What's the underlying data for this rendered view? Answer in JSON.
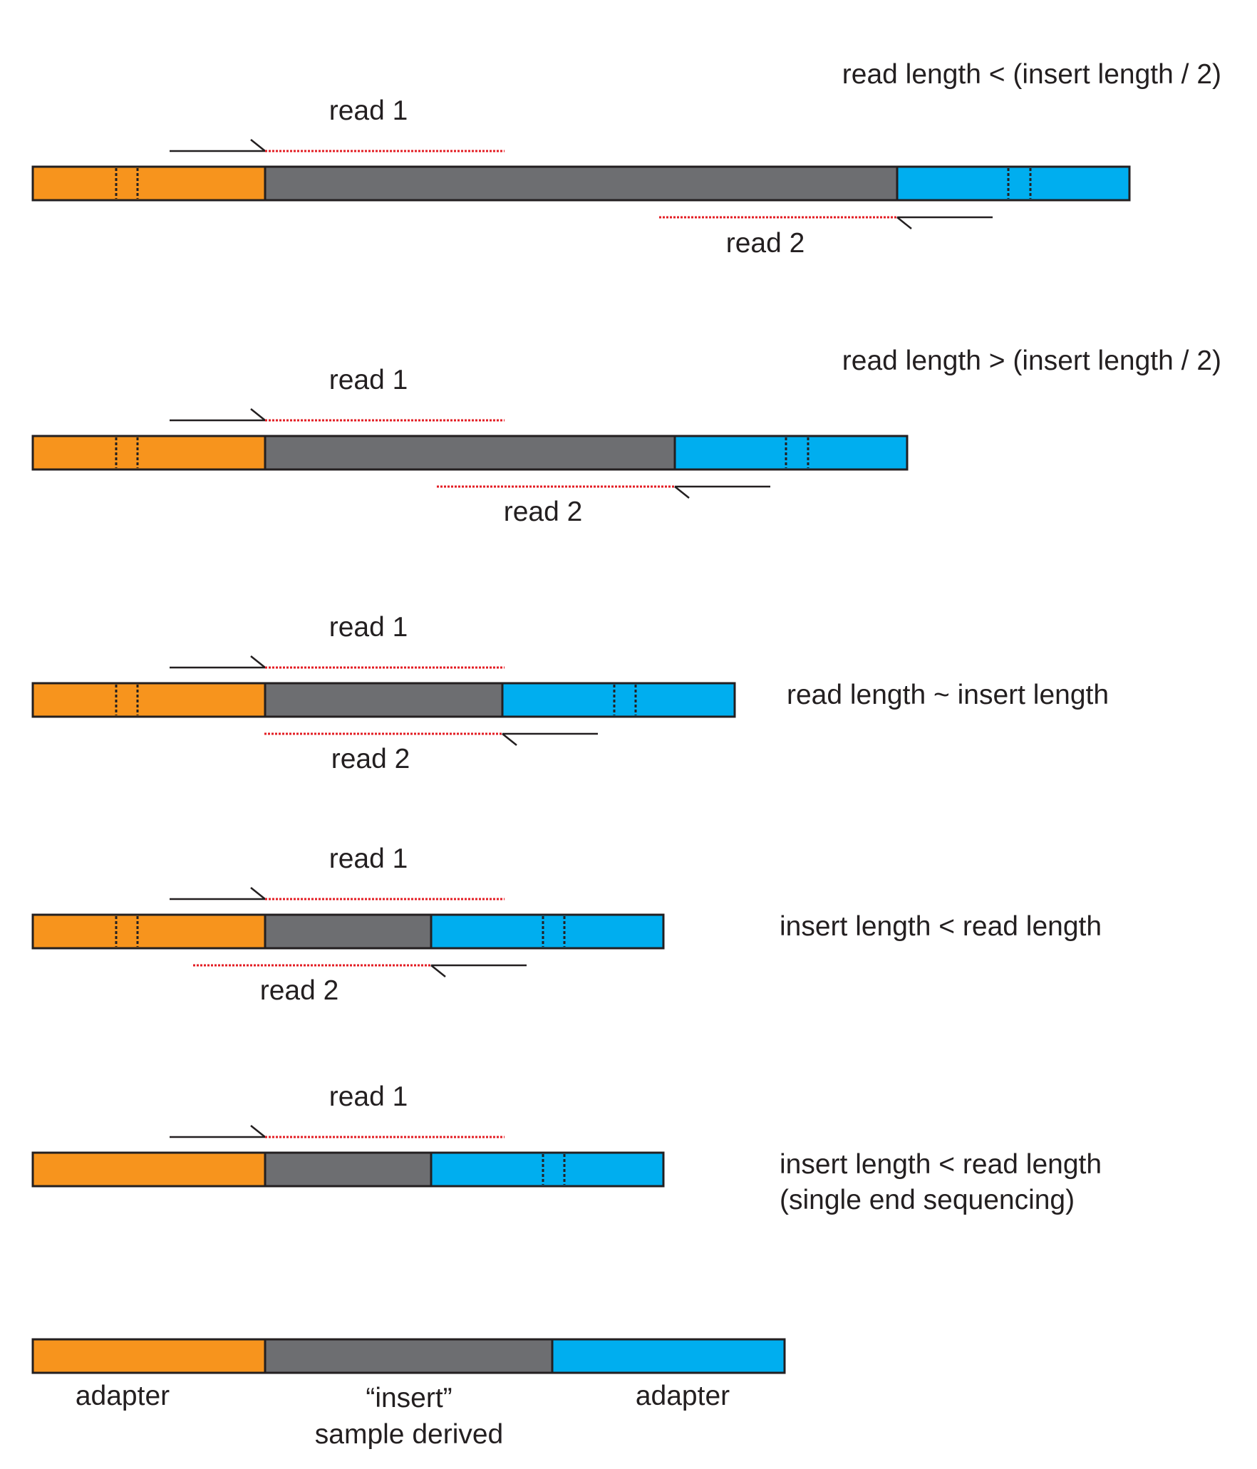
{
  "colors": {
    "adapter_left": "#f7941d",
    "insert": "#6d6e71",
    "adapter_right": "#00aeef",
    "outline": "#231f20",
    "read_overhang": "#e31e24"
  },
  "scenarios": [
    {
      "condition": [
        "read length < (insert length / 2)"
      ],
      "read1_label": "read 1",
      "read2_label": "read 2"
    },
    {
      "condition": [
        "read length > (insert length / 2)"
      ],
      "read1_label": "read 1",
      "read2_label": "read 2"
    },
    {
      "condition": [
        "read length ~ insert length"
      ],
      "read1_label": "read 1",
      "read2_label": "read 2"
    },
    {
      "condition": [
        "insert length < read length"
      ],
      "read1_label": "read 1",
      "read2_label": "read 2"
    },
    {
      "condition": [
        "insert length < read length",
        "(single end sequencing)"
      ],
      "read1_label": "read 1",
      "read2_label": ""
    }
  ],
  "legend": {
    "adapter_left_label": "adapter",
    "insert_label_line1": "“insert”",
    "insert_label_line2": "sample derived",
    "adapter_right_label": "adapter"
  }
}
